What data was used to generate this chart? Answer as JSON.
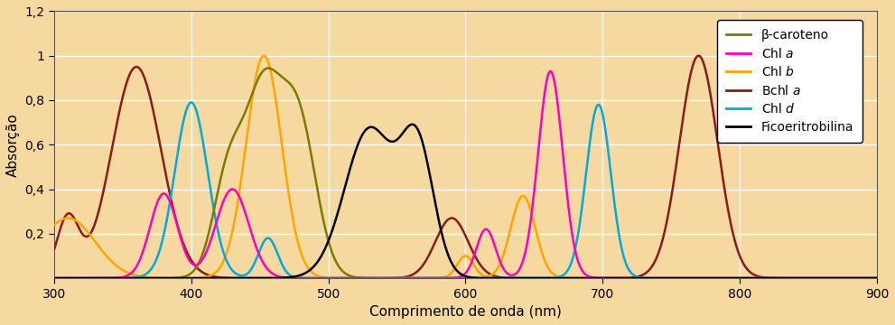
{
  "xlabel": "Comprimento de onda (nm)",
  "ylabel": "Absorção",
  "xlim": [
    300,
    900
  ],
  "ylim": [
    0,
    1.2
  ],
  "xticks": [
    300,
    400,
    500,
    600,
    700,
    800,
    900
  ],
  "yticks": [
    0.2,
    0.4,
    0.6,
    0.8,
    1.0,
    1.2
  ],
  "ytick_labels": [
    "0,2",
    "0,4",
    "0,6",
    "0,8",
    "1",
    "1,2"
  ],
  "background_color": "#F5D9A0",
  "plot_bg": "#F5D9A0",
  "grid_color": "#FFFFFF",
  "colors": {
    "beta_carotene": "#7B7B00",
    "chl_a": "#FF00BB",
    "chl_b": "#FFA500",
    "bchl_a": "#8B1A1A",
    "chl_d": "#00AADD",
    "ficoeritro": "#000000"
  },
  "legend_entries": [
    [
      "β-caroteno",
      "#7B7B00"
    ],
    [
      "Chl $a$",
      "#FF00BB"
    ],
    [
      "Chl $b$",
      "#FFA500"
    ],
    [
      "Bchl $a$",
      "#8B1A1A"
    ],
    [
      "Chl $d$",
      "#00AADD"
    ],
    [
      "Ficoeritrobilina",
      "#000000"
    ]
  ]
}
